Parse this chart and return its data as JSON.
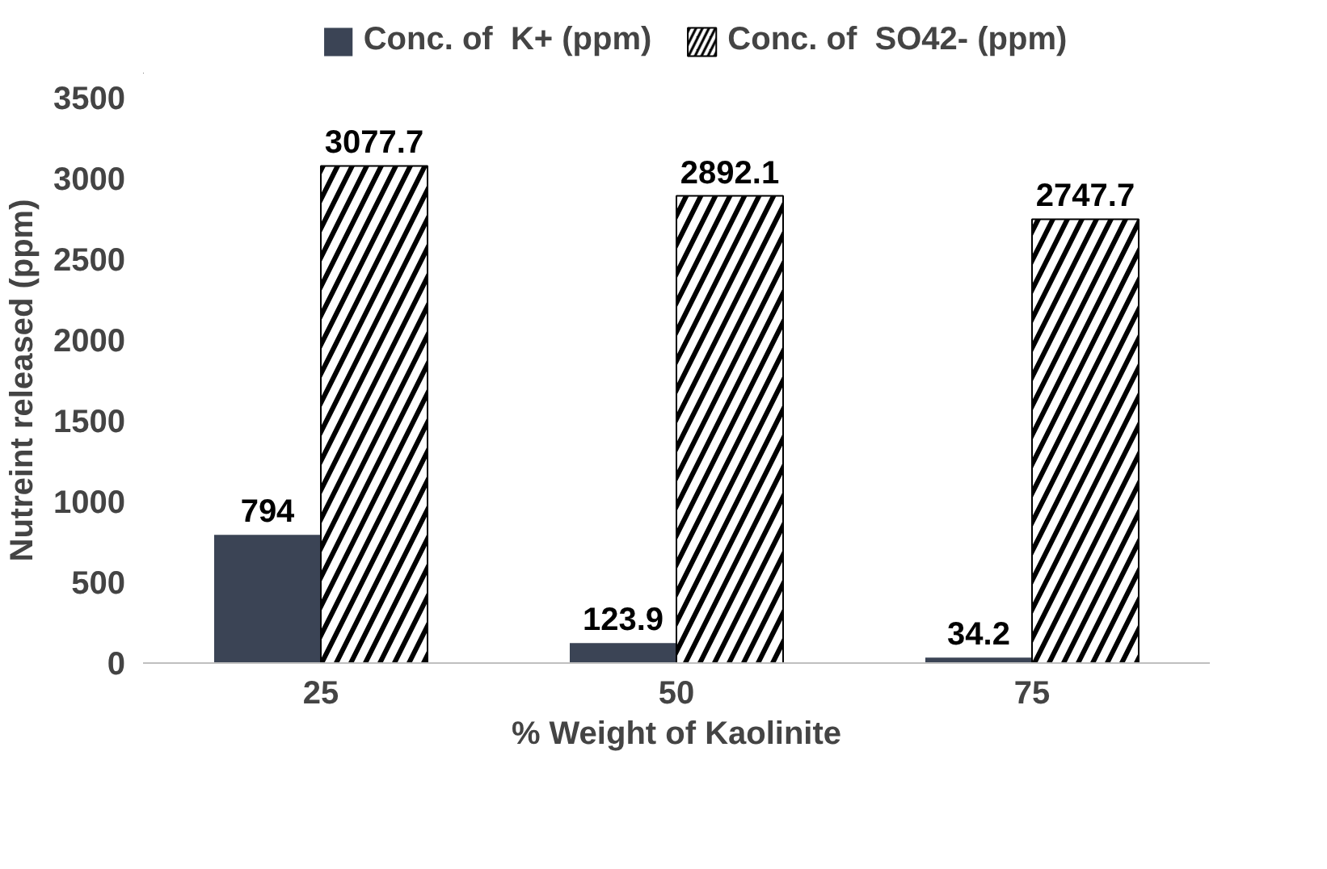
{
  "chart_data": {
    "type": "bar",
    "xlabel": "% Weight of Kaolinite",
    "ylabel": "Nutreint released (ppm)",
    "categories": [
      "25",
      "50",
      "75"
    ],
    "series": [
      {
        "name": "Conc. of  K+ (ppm)",
        "color": "#3b4455",
        "values": [
          794,
          123.9,
          34.2
        ]
      },
      {
        "name": "Conc. of  SO42- (ppm)",
        "color": "#000000",
        "values": [
          3077.7,
          2892.1,
          2747.7
        ]
      }
    ],
    "ylim": [
      0,
      3500
    ],
    "yticks": [
      0,
      500,
      1000,
      1500,
      2000,
      2500,
      3000,
      3500
    ],
    "grid": false,
    "legend": "top",
    "data_labels": true
  }
}
